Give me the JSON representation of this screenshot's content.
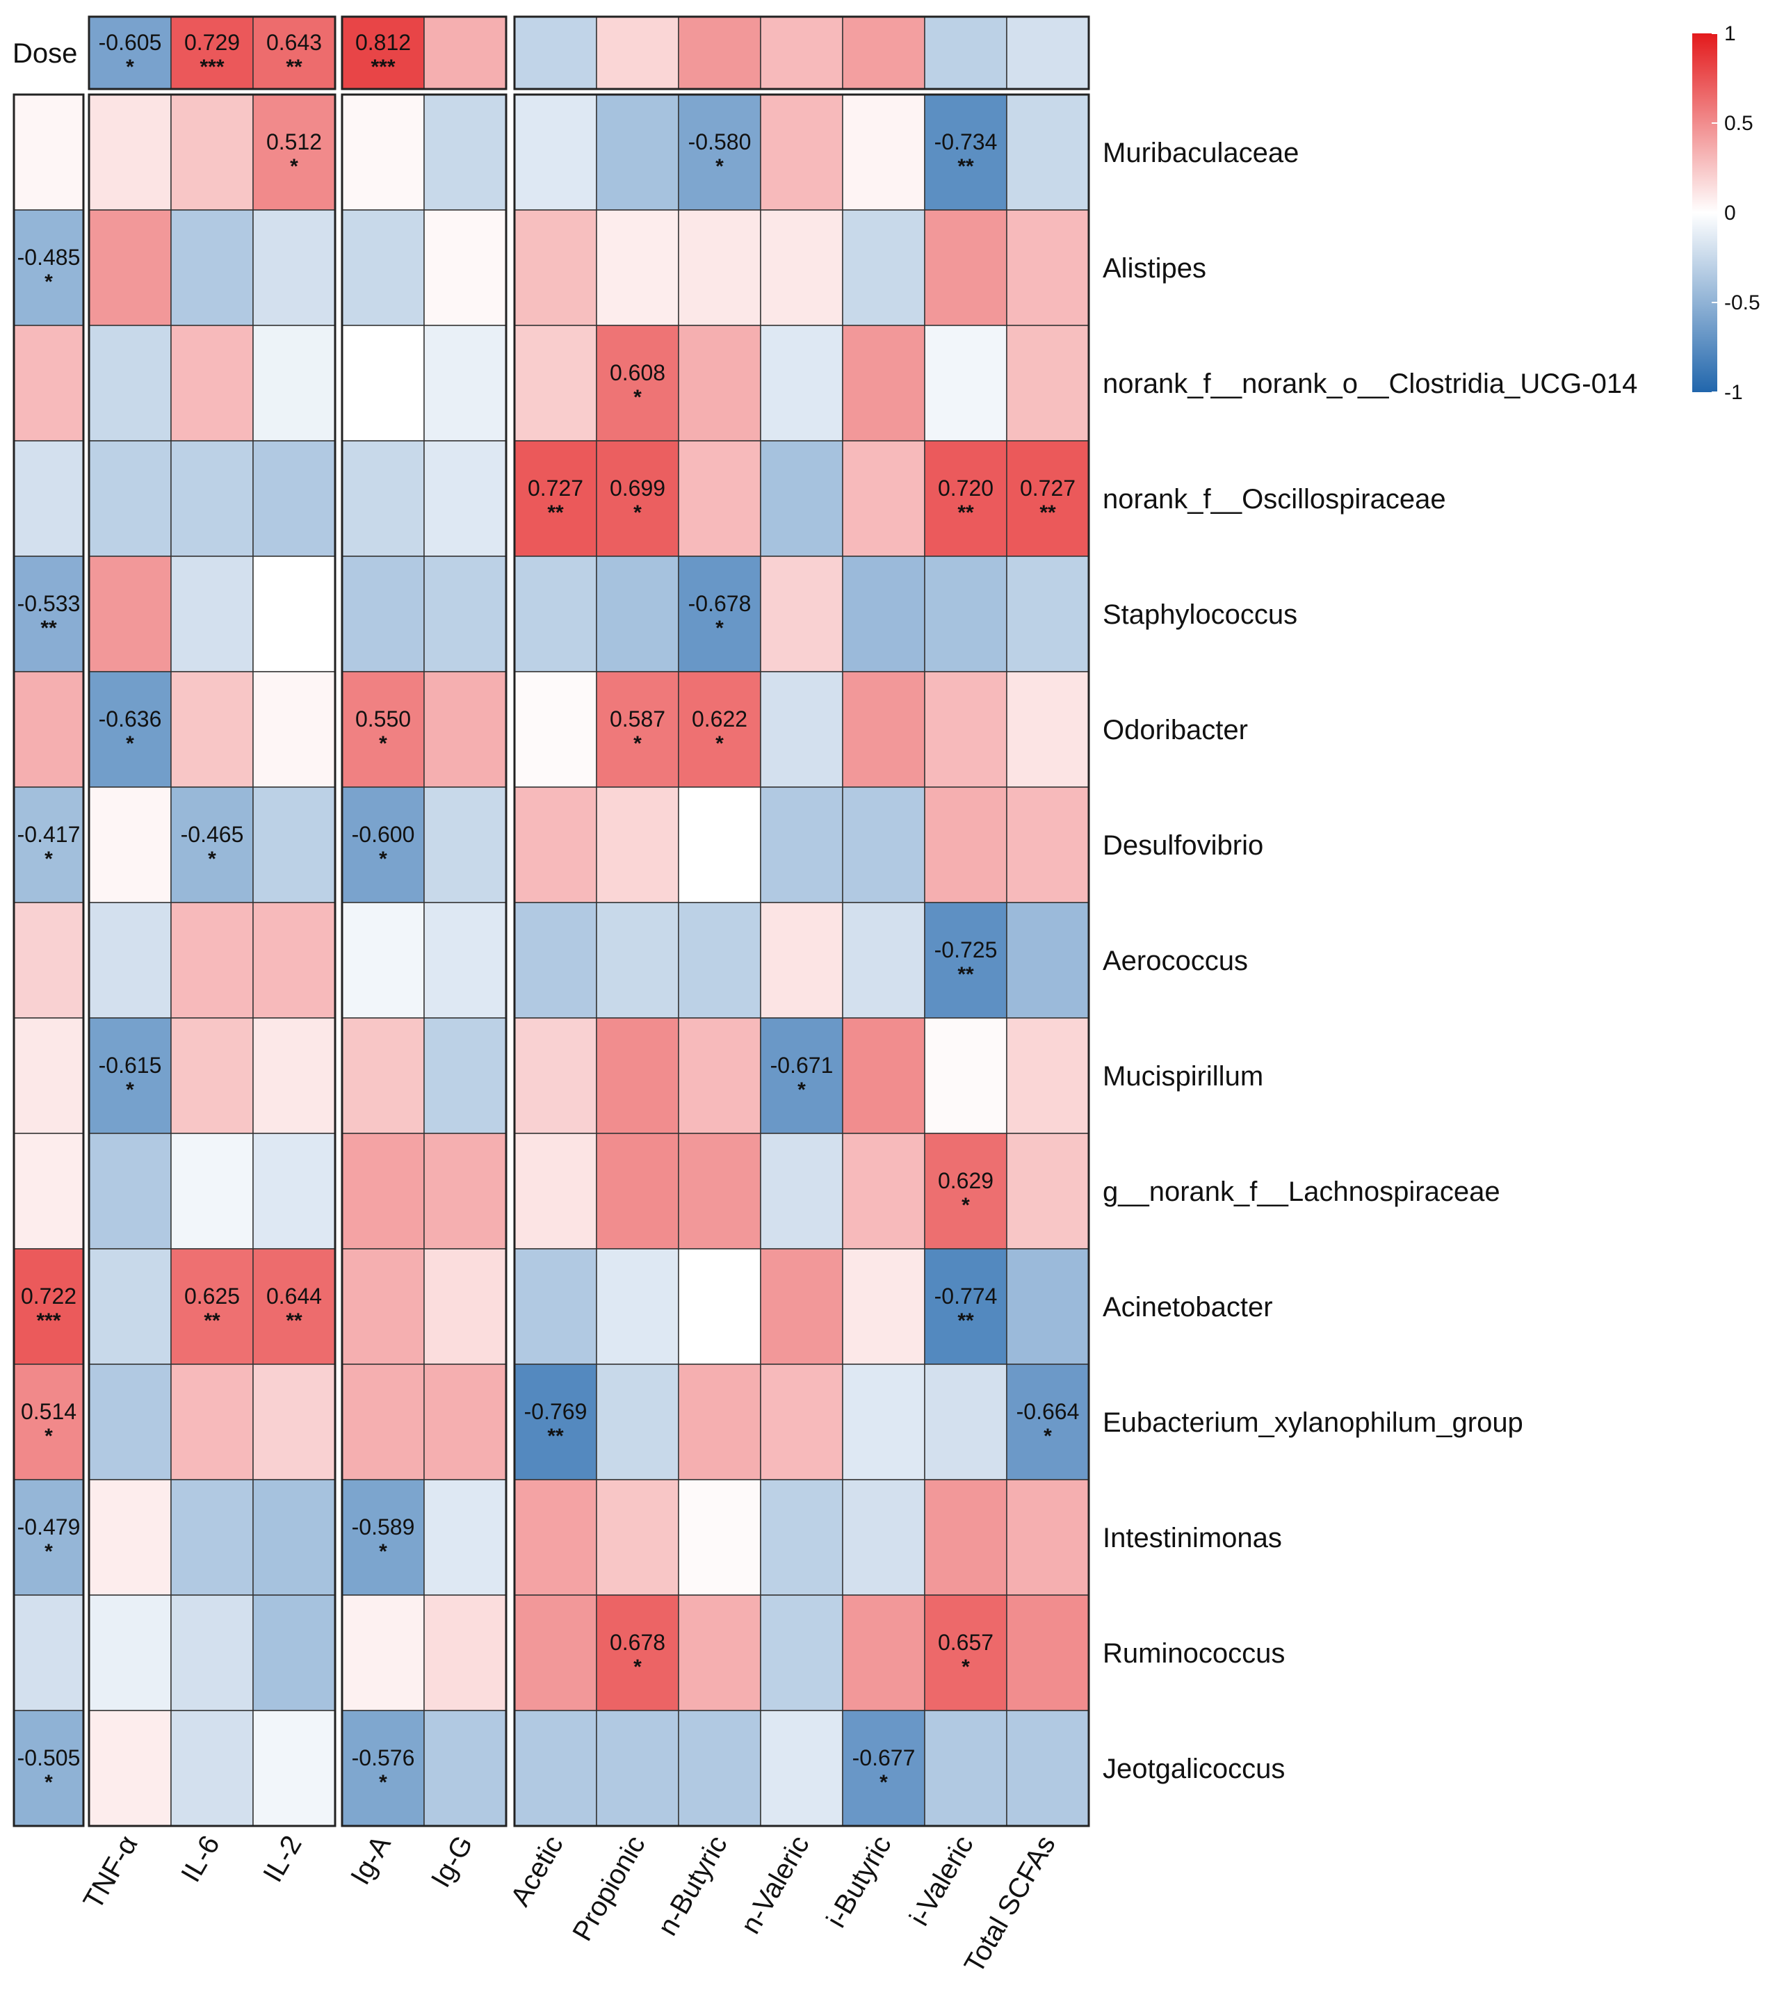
{
  "chart_data": {
    "type": "heatmap",
    "title": "",
    "color_scale": {
      "low": "#2166ac",
      "mid": "#ffffff",
      "high": "#e31a1c",
      "range": [
        -1,
        1
      ],
      "ticks": [
        "1",
        "0.5",
        "0",
        "-0.5",
        "-1"
      ]
    },
    "columns": [
      "TNF-α",
      "IL-6",
      "IL-2",
      "Ig-A",
      "Ig-G",
      "Acetic",
      "Propionic",
      "n-Butyric",
      "n-Valeric",
      "i-Butyric",
      "i-Valeric",
      "Total SCFAs"
    ],
    "column_groups": [
      3,
      2,
      7
    ],
    "dose_label": "Dose",
    "dose_row": {
      "values": [
        -0.605,
        0.729,
        0.643,
        0.812,
        0.35,
        -0.28,
        0.18,
        0.45,
        0.3,
        0.42,
        -0.3,
        -0.2
      ],
      "labels": [
        "-0.605",
        "0.729",
        "0.643",
        "0.812",
        "",
        "",
        "",
        "",
        "",
        "",
        "",
        ""
      ],
      "stars": [
        "*",
        "***",
        "**",
        "***",
        "",
        "",
        "",
        "",
        "",
        "",
        "",
        ""
      ]
    },
    "rows": [
      {
        "name": "Muribaculaceae",
        "dose": 0.04,
        "dose_label": "",
        "dose_star": "",
        "values": [
          0.12,
          0.25,
          0.512,
          0.03,
          -0.25,
          -0.15,
          -0.4,
          -0.58,
          0.3,
          0.05,
          -0.734,
          -0.25
        ],
        "labels": [
          "",
          "",
          "0.512",
          "",
          "",
          "",
          "",
          "-0.580",
          "",
          "",
          "-0.734",
          ""
        ],
        "stars": [
          "",
          "",
          "*",
          "",
          "",
          "",
          "",
          "*",
          "",
          "",
          "**",
          ""
        ]
      },
      {
        "name": "Alistipes",
        "dose": -0.485,
        "dose_label": "-0.485",
        "dose_star": "*",
        "values": [
          0.45,
          -0.35,
          -0.2,
          -0.25,
          0.03,
          0.28,
          0.08,
          0.1,
          0.1,
          -0.25,
          0.45,
          0.3
        ],
        "labels": [
          "",
          "",
          "",
          "",
          "",
          "",
          "",
          "",
          "",
          "",
          "",
          ""
        ],
        "stars": [
          "",
          "",
          "",
          "",
          "",
          "",
          "",
          "",
          "",
          "",
          "",
          ""
        ]
      },
      {
        "name": "norank_f__norank_o__Clostridia_UCG-014",
        "dose": 0.3,
        "dose_label": "",
        "dose_star": "",
        "values": [
          -0.25,
          0.3,
          -0.08,
          0.0,
          -0.1,
          0.22,
          0.608,
          0.35,
          -0.15,
          0.45,
          -0.06,
          0.28
        ],
        "labels": [
          "",
          "",
          "",
          "",
          "",
          "",
          "0.608",
          "",
          "",
          "",
          "",
          ""
        ],
        "stars": [
          "",
          "",
          "",
          "",
          "",
          "",
          "*",
          "",
          "",
          "",
          "",
          ""
        ]
      },
      {
        "name": "norank_f__Oscillospiraceae",
        "dose": -0.2,
        "dose_label": "",
        "dose_star": "",
        "values": [
          -0.3,
          -0.3,
          -0.35,
          -0.25,
          -0.15,
          0.727,
          0.699,
          0.3,
          -0.4,
          0.3,
          0.72,
          0.727
        ],
        "labels": [
          "",
          "",
          "",
          "",
          "",
          "0.727",
          "0.699",
          "",
          "",
          "",
          "0.720",
          "0.727"
        ],
        "stars": [
          "",
          "",
          "",
          "",
          "",
          "**",
          "*",
          "",
          "",
          "",
          "**",
          "**"
        ]
      },
      {
        "name": "Staphylococcus",
        "dose": -0.533,
        "dose_label": "-0.533",
        "dose_star": "**",
        "values": [
          0.45,
          -0.2,
          0.0,
          -0.35,
          -0.3,
          -0.3,
          -0.4,
          -0.678,
          0.2,
          -0.45,
          -0.4,
          -0.3
        ],
        "labels": [
          "",
          "",
          "",
          "",
          "",
          "",
          "",
          "-0.678",
          "",
          "",
          "",
          ""
        ],
        "stars": [
          "",
          "",
          "",
          "",
          "",
          "",
          "",
          "*",
          "",
          "",
          "",
          ""
        ]
      },
      {
        "name": "Odoribacter",
        "dose": 0.35,
        "dose_label": "",
        "dose_star": "",
        "values": [
          -0.636,
          0.25,
          0.04,
          0.55,
          0.35,
          0.02,
          0.587,
          0.622,
          -0.2,
          0.45,
          0.3,
          0.12
        ],
        "labels": [
          "-0.636",
          "",
          "",
          "0.550",
          "",
          "",
          "0.587",
          "0.622",
          "",
          "",
          "",
          ""
        ],
        "stars": [
          "*",
          "",
          "",
          "*",
          "",
          "",
          "*",
          "*",
          "",
          "",
          "",
          ""
        ]
      },
      {
        "name": "Desulfovibrio",
        "dose": -0.417,
        "dose_label": "-0.417",
        "dose_star": "*",
        "values": [
          0.04,
          -0.465,
          -0.3,
          -0.6,
          -0.25,
          0.3,
          0.18,
          0.0,
          -0.35,
          -0.35,
          0.35,
          0.3
        ],
        "labels": [
          "",
          "-0.465",
          "",
          "-0.600",
          "",
          "",
          "",
          "",
          "",
          "",
          "",
          ""
        ],
        "stars": [
          "",
          "*",
          "",
          "*",
          "",
          "",
          "",
          "",
          "",
          "",
          "",
          ""
        ]
      },
      {
        "name": "Aerococcus",
        "dose": 0.2,
        "dose_label": "",
        "dose_star": "",
        "values": [
          -0.2,
          0.3,
          0.3,
          -0.06,
          -0.15,
          -0.35,
          -0.25,
          -0.3,
          0.12,
          -0.2,
          -0.725,
          -0.45
        ],
        "labels": [
          "",
          "",
          "",
          "",
          "",
          "",
          "",
          "",
          "",
          "",
          "-0.725",
          ""
        ],
        "stars": [
          "",
          "",
          "",
          "",
          "",
          "",
          "",
          "",
          "",
          "",
          "**",
          ""
        ]
      },
      {
        "name": "Mucispirillum",
        "dose": 0.1,
        "dose_label": "",
        "dose_star": "",
        "values": [
          -0.615,
          0.25,
          0.1,
          0.25,
          -0.3,
          0.2,
          0.5,
          0.3,
          -0.671,
          0.5,
          0.02,
          0.18
        ],
        "labels": [
          "-0.615",
          "",
          "",
          "",
          "",
          "",
          "",
          "",
          "-0.671",
          "",
          "",
          ""
        ],
        "stars": [
          "*",
          "",
          "",
          "",
          "",
          "",
          "",
          "",
          "*",
          "",
          "",
          ""
        ]
      },
      {
        "name": "g__norank_f__Lachnospiraceae",
        "dose": 0.08,
        "dose_label": "",
        "dose_star": "",
        "values": [
          -0.35,
          -0.06,
          -0.15,
          0.4,
          0.35,
          0.12,
          0.5,
          0.45,
          -0.2,
          0.3,
          0.629,
          0.25
        ],
        "labels": [
          "",
          "",
          "",
          "",
          "",
          "",
          "",
          "",
          "",
          "",
          "0.629",
          ""
        ],
        "stars": [
          "",
          "",
          "",
          "",
          "",
          "",
          "",
          "",
          "",
          "",
          "*",
          ""
        ]
      },
      {
        "name": "Acinetobacter",
        "dose": 0.722,
        "dose_label": "0.722",
        "dose_star": "***",
        "values": [
          -0.25,
          0.625,
          0.644,
          0.35,
          0.15,
          -0.35,
          -0.15,
          0.0,
          0.45,
          0.1,
          -0.774,
          -0.45
        ],
        "labels": [
          "",
          "0.625",
          "0.644",
          "",
          "",
          "",
          "",
          "",
          "",
          "",
          "-0.774",
          ""
        ],
        "stars": [
          "",
          "**",
          "**",
          "",
          "",
          "",
          "",
          "",
          "",
          "",
          "**",
          ""
        ]
      },
      {
        "name": "Eubacterium_xylanophilum_group",
        "dose": 0.514,
        "dose_label": "0.514",
        "dose_star": "*",
        "values": [
          -0.35,
          0.3,
          0.2,
          0.35,
          0.35,
          -0.769,
          -0.25,
          0.35,
          0.3,
          -0.15,
          -0.2,
          -0.664
        ],
        "labels": [
          "",
          "",
          "",
          "",
          "",
          "-0.769",
          "",
          "",
          "",
          "",
          "",
          "-0.664"
        ],
        "stars": [
          "",
          "",
          "",
          "",
          "",
          "**",
          "",
          "",
          "",
          "",
          "",
          "*"
        ]
      },
      {
        "name": "Intestinimonas",
        "dose": -0.479,
        "dose_label": "-0.479",
        "dose_star": "*",
        "values": [
          0.08,
          -0.35,
          -0.4,
          -0.589,
          -0.15,
          0.4,
          0.25,
          0.02,
          -0.3,
          -0.2,
          0.45,
          0.35
        ],
        "labels": [
          "",
          "",
          "",
          "-0.589",
          "",
          "",
          "",
          "",
          "",
          "",
          "",
          ""
        ],
        "stars": [
          "",
          "",
          "",
          "*",
          "",
          "",
          "",
          "",
          "",
          "",
          "",
          ""
        ]
      },
      {
        "name": "Ruminococcus",
        "dose": -0.2,
        "dose_label": "",
        "dose_star": "",
        "values": [
          -0.1,
          -0.2,
          -0.4,
          0.06,
          0.15,
          0.45,
          0.678,
          0.35,
          -0.3,
          0.45,
          0.657,
          0.5
        ],
        "labels": [
          "",
          "",
          "",
          "",
          "",
          "",
          "0.678",
          "",
          "",
          "",
          "0.657",
          ""
        ],
        "stars": [
          "",
          "",
          "",
          "",
          "",
          "",
          "*",
          "",
          "",
          "",
          "*",
          ""
        ]
      },
      {
        "name": "Jeotgalicoccus",
        "dose": -0.505,
        "dose_label": "-0.505",
        "dose_star": "*",
        "values": [
          0.08,
          -0.2,
          -0.06,
          -0.576,
          -0.35,
          -0.35,
          -0.35,
          -0.35,
          -0.15,
          -0.677,
          -0.35,
          -0.35
        ],
        "labels": [
          "",
          "",
          "",
          "-0.576",
          "",
          "",
          "",
          "",
          "",
          "-0.677",
          "",
          ""
        ],
        "stars": [
          "",
          "",
          "",
          "*",
          "",
          "",
          "",
          "",
          "",
          "*",
          "",
          ""
        ]
      }
    ]
  }
}
